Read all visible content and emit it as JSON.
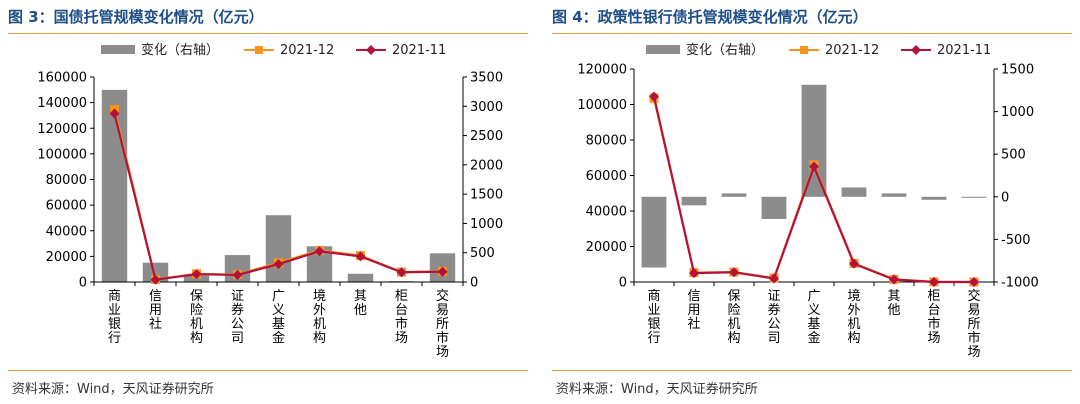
{
  "figures": [
    {
      "title": "图 3：国债托管规模变化情况（亿元）",
      "source": "资料来源：Wind，天风证券研究所"
    },
    {
      "title": "图 4：政策性银行债托管规模变化情况（亿元）",
      "source": "资料来源：Wind，天风证券研究所"
    }
  ],
  "colors": {
    "bar": "#8c8c8c",
    "series_dec": "#f7941d",
    "series_nov": "#b5123a",
    "title": "#1e4e86",
    "rule": "#e3a24c"
  },
  "chart_data": [
    {
      "type": "bar",
      "categories": [
        "商业银行",
        "信用社",
        "保险机构",
        "证券公司",
        "广义基金",
        "境外机构",
        "其他",
        "柜台市场",
        "交易所市场"
      ],
      "bar_mode": "absolute",
      "legend": {
        "bar": "变化（右轴）",
        "series_dec": "2021-12",
        "series_nov": "2021-11",
        "placement": "top"
      },
      "y_left": {
        "min": 0,
        "max": 160000,
        "ticks": [
          0,
          20000,
          40000,
          60000,
          80000,
          100000,
          120000,
          140000,
          160000
        ]
      },
      "y_right": {
        "min": 0,
        "max": 3500,
        "ticks": [
          0,
          500,
          1000,
          1500,
          2000,
          2500,
          3000,
          3500
        ]
      },
      "series": [
        {
          "name": "变化（右轴）",
          "kind": "bar",
          "axis": "right",
          "values": [
            3280,
            330,
            110,
            460,
            1140,
            610,
            140,
            15,
            490
          ]
        },
        {
          "name": "2021-12",
          "kind": "line",
          "axis": "left",
          "values": [
            134500,
            2000,
            6400,
            5800,
            15000,
            24700,
            20600,
            7700,
            8300
          ]
        },
        {
          "name": "2021-11",
          "kind": "line",
          "axis": "left",
          "values": [
            131500,
            1800,
            6100,
            5500,
            14000,
            24000,
            20000,
            7600,
            8000
          ]
        }
      ]
    },
    {
      "type": "bar",
      "categories": [
        "商业银行",
        "信用社",
        "保险机构",
        "证券公司",
        "广义基金",
        "境外机构",
        "其他",
        "柜台市场",
        "交易所市场"
      ],
      "bar_mode": "diverging",
      "legend": {
        "bar": "变化（右轴）",
        "series_dec": "2021-12",
        "series_nov": "2021-11",
        "placement": "top"
      },
      "y_left": {
        "min": 0,
        "max": 120000,
        "ticks": [
          0,
          20000,
          40000,
          60000,
          80000,
          100000,
          120000
        ]
      },
      "y_right": {
        "min": -1000,
        "max": 1500,
        "ticks": [
          -1000,
          -500,
          0,
          500,
          1000,
          1500
        ]
      },
      "series": [
        {
          "name": "变化（右轴）",
          "kind": "bar",
          "axis": "right",
          "values": [
            -830,
            -100,
            40,
            -260,
            1315,
            110,
            40,
            -35,
            0
          ]
        },
        {
          "name": "2021-12",
          "kind": "line",
          "axis": "left",
          "values": [
            103500,
            5300,
            5600,
            2200,
            66000,
            10500,
            1500,
            100,
            0
          ]
        },
        {
          "name": "2021-11",
          "kind": "line",
          "axis": "left",
          "values": [
            104500,
            5000,
            5500,
            2000,
            65000,
            10300,
            1400,
            0,
            0
          ]
        }
      ]
    }
  ]
}
